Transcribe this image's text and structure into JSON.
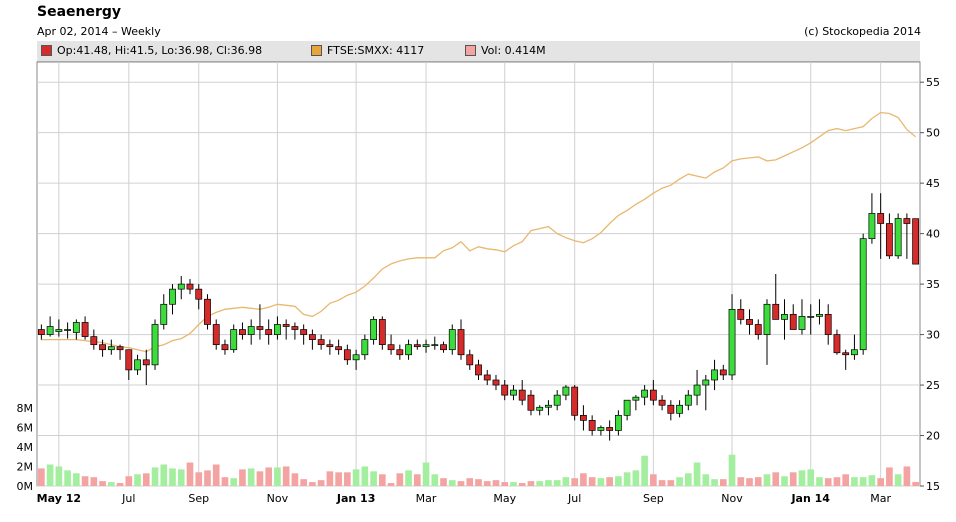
{
  "header": {
    "title": "Seaenergy",
    "subtitle": "Apr 02, 2014 – Weekly",
    "copyright": "(c) Stockopedia 2014"
  },
  "legend": {
    "ohlc": {
      "label": "Op:41.48, Hi:41.5, Lo:36.98, Cl:36.98",
      "color": "#d62b2b"
    },
    "index": {
      "label": "FTSE:SMXX: 4117",
      "color": "#e8a53c"
    },
    "volume": {
      "label": "Vol: 0.414M",
      "color": "#f4a3a3"
    }
  },
  "colors": {
    "up": "#3ddc3d",
    "down": "#d62b2b",
    "wick": "#000000",
    "index_line": "#e8b870",
    "vol_up": "#a3ef9f",
    "vol_down": "#f4a3a3",
    "grid": "#d0d0d0"
  },
  "chart_data": {
    "type": "candlestick",
    "period": "Weekly",
    "price_axis": {
      "ticks": [
        "55",
        "50",
        "45",
        "40",
        "35",
        "30",
        "25",
        "20",
        "15"
      ],
      "min": 15,
      "max": 57
    },
    "volume_axis": {
      "ticks": [
        "8M",
        "6M",
        "4M",
        "2M",
        "0M"
      ],
      "min": 0,
      "max": 9
    },
    "x_labels": [
      {
        "label": "May 12",
        "bold": true,
        "week": 2
      },
      {
        "label": "Jul",
        "bold": false,
        "week": 10
      },
      {
        "label": "Sep",
        "bold": false,
        "week": 18
      },
      {
        "label": "Nov",
        "bold": false,
        "week": 27
      },
      {
        "label": "Jan 13",
        "bold": true,
        "week": 36
      },
      {
        "label": "Mar",
        "bold": false,
        "week": 44
      },
      {
        "label": "May",
        "bold": false,
        "week": 53
      },
      {
        "label": "Jul",
        "bold": false,
        "week": 61
      },
      {
        "label": "Sep",
        "bold": false,
        "week": 70
      },
      {
        "label": "Nov",
        "bold": false,
        "week": 79
      },
      {
        "label": "Jan 14",
        "bold": true,
        "week": 88
      },
      {
        "label": "Mar",
        "bold": false,
        "week": 96
      }
    ],
    "candles": [
      [
        30.5,
        31.0,
        29.5,
        30.0
      ],
      [
        30.0,
        31.8,
        29.8,
        30.8
      ],
      [
        30.3,
        31.5,
        29.8,
        30.5
      ],
      [
        30.5,
        31.2,
        29.6,
        30.5
      ],
      [
        30.2,
        31.5,
        29.5,
        31.2
      ],
      [
        31.2,
        31.8,
        29.5,
        29.8
      ],
      [
        29.8,
        30.5,
        28.5,
        29.0
      ],
      [
        29.0,
        29.5,
        27.8,
        28.5
      ],
      [
        28.5,
        29.5,
        28.0,
        28.8
      ],
      [
        28.8,
        29.0,
        27.5,
        28.5
      ],
      [
        28.5,
        28.5,
        25.5,
        26.5
      ],
      [
        26.5,
        28.0,
        26.0,
        27.5
      ],
      [
        27.5,
        28.5,
        25.0,
        27.0
      ],
      [
        27.0,
        31.5,
        26.5,
        31.0
      ],
      [
        31.0,
        34.0,
        30.5,
        33.0
      ],
      [
        33.0,
        35.0,
        32.0,
        34.5
      ],
      [
        34.5,
        35.8,
        33.5,
        35.0
      ],
      [
        35.0,
        35.5,
        34.0,
        34.5
      ],
      [
        34.5,
        35.0,
        32.5,
        33.5
      ],
      [
        33.5,
        34.0,
        30.5,
        31.0
      ],
      [
        31.0,
        31.5,
        28.5,
        29.0
      ],
      [
        29.0,
        29.5,
        28.0,
        28.5
      ],
      [
        28.5,
        31.0,
        28.2,
        30.5
      ],
      [
        30.5,
        31.2,
        29.5,
        30.0
      ],
      [
        30.0,
        31.5,
        29.0,
        30.8
      ],
      [
        30.8,
        33.0,
        29.5,
        30.5
      ],
      [
        30.5,
        31.5,
        29.0,
        30.0
      ],
      [
        30.0,
        31.8,
        29.5,
        31.0
      ],
      [
        31.0,
        31.5,
        29.5,
        30.8
      ],
      [
        30.8,
        31.2,
        29.5,
        30.5
      ],
      [
        30.5,
        31.0,
        29.0,
        30.0
      ],
      [
        30.0,
        30.5,
        28.5,
        29.5
      ],
      [
        29.5,
        30.0,
        28.5,
        29.0
      ],
      [
        29.0,
        29.5,
        28.0,
        28.8
      ],
      [
        28.8,
        29.5,
        28.0,
        28.5
      ],
      [
        28.5,
        29.0,
        27.0,
        27.5
      ],
      [
        27.5,
        28.5,
        26.5,
        28.0
      ],
      [
        28.0,
        30.0,
        27.5,
        29.5
      ],
      [
        29.5,
        31.8,
        29.0,
        31.5
      ],
      [
        31.5,
        31.8,
        28.5,
        29.0
      ],
      [
        29.0,
        30.0,
        28.0,
        28.5
      ],
      [
        28.5,
        29.0,
        27.5,
        28.0
      ],
      [
        28.0,
        29.5,
        27.5,
        29.0
      ],
      [
        29.0,
        29.5,
        28.5,
        28.8
      ],
      [
        28.8,
        29.5,
        28.2,
        29.0
      ],
      [
        29.0,
        29.8,
        28.5,
        29.0
      ],
      [
        29.0,
        29.3,
        28.2,
        28.5
      ],
      [
        28.5,
        31.0,
        28.0,
        30.5
      ],
      [
        30.5,
        31.5,
        27.5,
        28.0
      ],
      [
        28.0,
        28.5,
        26.5,
        27.0
      ],
      [
        27.0,
        27.5,
        25.5,
        26.0
      ],
      [
        26.0,
        26.5,
        25.0,
        25.5
      ],
      [
        25.5,
        26.0,
        24.5,
        25.0
      ],
      [
        25.0,
        25.5,
        23.5,
        24.0
      ],
      [
        24.0,
        25.0,
        23.5,
        24.5
      ],
      [
        24.5,
        25.5,
        23.0,
        23.5
      ],
      [
        24.0,
        24.5,
        22.0,
        22.5
      ],
      [
        22.5,
        23.0,
        22.0,
        22.8
      ],
      [
        22.8,
        23.5,
        22.0,
        23.0
      ],
      [
        23.0,
        24.5,
        22.5,
        24.0
      ],
      [
        24.0,
        25.0,
        23.5,
        24.8
      ],
      [
        24.8,
        25.0,
        21.5,
        22.0
      ],
      [
        22.0,
        23.0,
        20.5,
        21.5
      ],
      [
        21.5,
        22.0,
        20.0,
        20.5
      ],
      [
        20.5,
        21.0,
        20.0,
        20.8
      ],
      [
        20.8,
        21.5,
        19.5,
        20.5
      ],
      [
        20.5,
        22.5,
        20.0,
        22.0
      ],
      [
        22.0,
        23.5,
        21.5,
        23.5
      ],
      [
        23.5,
        24.0,
        22.5,
        23.8
      ],
      [
        23.8,
        25.0,
        23.0,
        24.5
      ],
      [
        24.5,
        25.5,
        23.0,
        23.5
      ],
      [
        23.5,
        24.0,
        22.5,
        23.0
      ],
      [
        23.0,
        23.5,
        21.5,
        22.2
      ],
      [
        22.2,
        23.5,
        21.8,
        23.0
      ],
      [
        23.0,
        24.5,
        22.5,
        24.0
      ],
      [
        24.0,
        26.5,
        23.0,
        25.0
      ],
      [
        25.0,
        26.0,
        22.5,
        25.5
      ],
      [
        25.5,
        27.5,
        24.5,
        26.5
      ],
      [
        26.5,
        27.0,
        25.5,
        26.0
      ],
      [
        26.0,
        34.0,
        25.5,
        32.5
      ],
      [
        32.5,
        33.5,
        31.0,
        31.5
      ],
      [
        31.5,
        32.5,
        30.0,
        31.0
      ],
      [
        31.0,
        31.5,
        29.5,
        30.0
      ],
      [
        30.0,
        33.5,
        27.0,
        33.0
      ],
      [
        33.0,
        36.0,
        31.5,
        31.5
      ],
      [
        31.5,
        33.5,
        29.5,
        32.0
      ],
      [
        32.0,
        33.0,
        30.5,
        30.5
      ],
      [
        30.5,
        33.5,
        30.0,
        31.8
      ],
      [
        31.8,
        33.0,
        30.0,
        31.8
      ],
      [
        31.8,
        33.5,
        31.0,
        32.0
      ],
      [
        32.0,
        33.0,
        29.0,
        30.0
      ],
      [
        30.0,
        30.5,
        28.0,
        28.2
      ],
      [
        28.2,
        28.5,
        26.5,
        28.0
      ],
      [
        28.0,
        30.0,
        27.5,
        28.5
      ],
      [
        28.5,
        40.0,
        28.0,
        39.5
      ],
      [
        39.5,
        44.0,
        39.0,
        42.0
      ],
      [
        42.0,
        44.0,
        37.5,
        41.0
      ],
      [
        41.0,
        42.0,
        37.5,
        37.8
      ],
      [
        37.8,
        42.0,
        37.5,
        41.5
      ],
      [
        41.5,
        42.0,
        37.5,
        41.0
      ],
      [
        41.48,
        41.5,
        36.98,
        36.98
      ]
    ],
    "volume": [
      1.8,
      2.2,
      2.0,
      1.6,
      1.3,
      1.0,
      0.9,
      0.5,
      0.4,
      0.3,
      1.0,
      1.2,
      1.3,
      1.9,
      2.2,
      1.8,
      1.7,
      2.4,
      1.4,
      1.6,
      2.2,
      0.9,
      0.8,
      1.7,
      1.8,
      1.5,
      1.9,
      1.9,
      2.0,
      1.3,
      0.7,
      0.4,
      0.6,
      1.5,
      1.4,
      1.4,
      1.7,
      2.0,
      1.5,
      1.2,
      0.3,
      1.3,
      1.6,
      1.2,
      2.4,
      1.2,
      0.8,
      0.6,
      0.5,
      0.8,
      0.7,
      0.5,
      0.6,
      0.4,
      0.4,
      0.3,
      0.5,
      0.5,
      0.6,
      0.6,
      0.9,
      0.8,
      1.3,
      0.9,
      0.8,
      0.9,
      1.0,
      1.4,
      1.6,
      3.1,
      1.2,
      0.6,
      0.6,
      0.9,
      1.3,
      2.4,
      1.2,
      0.7,
      0.7,
      3.2,
      0.9,
      0.8,
      0.9,
      1.2,
      1.4,
      1.0,
      1.4,
      1.6,
      1.7,
      0.9,
      0.8,
      0.9,
      1.2,
      0.9,
      0.9,
      1.1,
      0.8,
      1.9,
      1.2,
      2.0,
      0.414
    ],
    "index_series": [
      29.5,
      29.5,
      29.5,
      29.5,
      29.5,
      29.4,
      29.3,
      29.2,
      29.0,
      28.8,
      28.7,
      28.5,
      28.3,
      28.8,
      29.0,
      29.4,
      29.6,
      30.1,
      31.0,
      31.8,
      32.2,
      32.5,
      32.6,
      32.7,
      32.6,
      32.5,
      32.7,
      33.0,
      32.9,
      32.8,
      32.0,
      31.8,
      32.3,
      33.1,
      33.4,
      33.9,
      34.2,
      34.8,
      35.6,
      36.5,
      37.0,
      37.3,
      37.5,
      37.6,
      37.6,
      37.6,
      38.3,
      38.6,
      39.2,
      38.3,
      38.7,
      38.5,
      38.4,
      38.2,
      38.8,
      39.2,
      40.3,
      40.5,
      40.7,
      40.0,
      39.6,
      39.3,
      39.1,
      39.5,
      40.1,
      41.0,
      41.8,
      42.3,
      42.9,
      43.4,
      44.0,
      44.5,
      44.8,
      45.4,
      45.9,
      45.7,
      45.5,
      46.1,
      46.5,
      47.2,
      47.4,
      47.5,
      47.6,
      47.2,
      47.3,
      47.7,
      48.1,
      48.5,
      49.0,
      49.6,
      50.2,
      50.4,
      50.2,
      50.4,
      50.6,
      51.4,
      52.0,
      51.9,
      51.5,
      50.3,
      49.6
    ]
  }
}
